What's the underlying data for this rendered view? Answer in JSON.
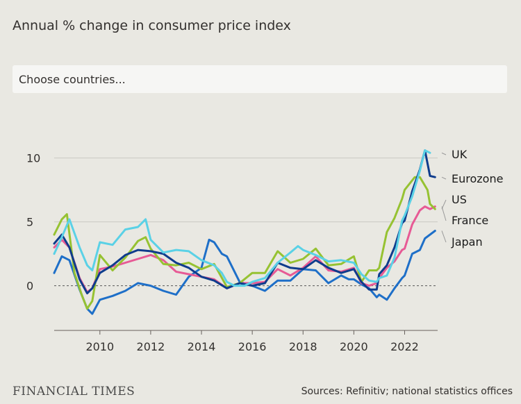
{
  "subtitle": "Annual % change in consumer price index",
  "chooser": {
    "placeholder": "Choose countries..."
  },
  "footer": {
    "brand": "FINANCIAL TIMES",
    "source": "Sources: Refinitiv; national statistics offices"
  },
  "chart_data": {
    "type": "line",
    "title": "",
    "xlabel": "",
    "ylabel": "",
    "xlim": [
      2008.2,
      2023.3
    ],
    "ylim": [
      -3.5,
      11.5
    ],
    "x_ticks": [
      2010,
      2012,
      2014,
      2016,
      2018,
      2020,
      2022
    ],
    "x_tick_labels": [
      "2010",
      "2012",
      "2014",
      "2016",
      "2018",
      "2020",
      "2022"
    ],
    "y_ticks": [
      0,
      5,
      10
    ],
    "y_tick_labels": [
      "0",
      "5",
      "10"
    ],
    "grid": true,
    "legend": "end-of-line labels, right",
    "series": [
      {
        "name": "UK",
        "color": "#5ad1e6",
        "x": [
          2008.2,
          2008.5,
          2008.8,
          2009.2,
          2009.5,
          2009.7,
          2010.0,
          2010.5,
          2011.0,
          2011.5,
          2011.8,
          2012.0,
          2012.5,
          2013.0,
          2013.5,
          2014.0,
          2014.5,
          2014.8,
          2015.0,
          2015.3,
          2015.7,
          2016.0,
          2016.5,
          2017.0,
          2017.5,
          2017.8,
          2018.0,
          2018.5,
          2019.0,
          2019.5,
          2020.0,
          2020.3,
          2020.6,
          2020.9,
          2021.0,
          2021.3,
          2021.6,
          2021.9,
          2022.0,
          2022.3,
          2022.6,
          2022.8,
          2023.0
        ],
        "y": [
          2.5,
          3.8,
          5.2,
          3.0,
          1.6,
          1.2,
          3.4,
          3.2,
          4.4,
          4.6,
          5.2,
          3.6,
          2.6,
          2.8,
          2.7,
          2.0,
          1.6,
          1.0,
          0.3,
          0.0,
          0.0,
          0.3,
          0.6,
          1.8,
          2.6,
          3.1,
          2.8,
          2.4,
          1.9,
          2.0,
          1.8,
          0.9,
          0.4,
          0.3,
          0.6,
          0.8,
          2.2,
          5.1,
          5.5,
          7.0,
          9.0,
          10.6,
          10.4
        ]
      },
      {
        "name": "Eurozone",
        "color": "#0f3c8c",
        "x": [
          2008.2,
          2008.5,
          2008.8,
          2009.2,
          2009.5,
          2009.7,
          2010.0,
          2010.5,
          2011.0,
          2011.5,
          2012.0,
          2012.5,
          2013.0,
          2013.5,
          2014.0,
          2014.5,
          2015.0,
          2015.5,
          2016.0,
          2016.5,
          2017.0,
          2017.5,
          2018.0,
          2018.5,
          2019.0,
          2019.5,
          2020.0,
          2020.3,
          2020.6,
          2020.9,
          2021.0,
          2021.3,
          2021.6,
          2021.9,
          2022.0,
          2022.3,
          2022.6,
          2022.8,
          2023.0,
          2023.2
        ],
        "y": [
          3.3,
          4.0,
          3.0,
          0.5,
          -0.6,
          -0.2,
          1.0,
          1.6,
          2.4,
          2.8,
          2.7,
          2.5,
          1.8,
          1.4,
          0.7,
          0.4,
          -0.2,
          0.2,
          0.0,
          0.2,
          1.8,
          1.4,
          1.3,
          2.0,
          1.4,
          1.0,
          1.3,
          0.3,
          -0.3,
          -0.3,
          0.9,
          1.6,
          3.0,
          4.9,
          5.1,
          7.4,
          9.1,
          10.6,
          8.6,
          8.5
        ]
      },
      {
        "name": "US",
        "color": "#96c232",
        "x": [
          2008.2,
          2008.5,
          2008.7,
          2009.0,
          2009.3,
          2009.5,
          2009.7,
          2010.0,
          2010.5,
          2011.0,
          2011.5,
          2011.8,
          2012.0,
          2012.5,
          2013.0,
          2013.5,
          2014.0,
          2014.5,
          2015.0,
          2015.5,
          2016.0,
          2016.5,
          2017.0,
          2017.5,
          2018.0,
          2018.5,
          2019.0,
          2019.5,
          2020.0,
          2020.3,
          2020.6,
          2020.9,
          2021.0,
          2021.3,
          2021.6,
          2021.9,
          2022.0,
          2022.4,
          2022.6,
          2022.9,
          2023.0,
          2023.2
        ],
        "y": [
          4.0,
          5.2,
          5.6,
          1.0,
          -0.8,
          -1.8,
          -1.2,
          2.4,
          1.2,
          2.2,
          3.5,
          3.8,
          2.9,
          1.7,
          1.6,
          1.8,
          1.3,
          1.7,
          -0.1,
          0.2,
          1.0,
          1.0,
          2.7,
          1.8,
          2.1,
          2.9,
          1.6,
          1.7,
          2.3,
          0.3,
          1.2,
          1.2,
          1.4,
          4.2,
          5.3,
          6.8,
          7.5,
          8.5,
          8.5,
          7.5,
          6.4,
          6.0
        ]
      },
      {
        "name": "France",
        "color": "#e75a95",
        "x": [
          2008.2,
          2008.5,
          2008.8,
          2009.2,
          2009.5,
          2009.7,
          2010.0,
          2010.5,
          2011.0,
          2011.5,
          2012.0,
          2012.5,
          2013.0,
          2013.5,
          2014.0,
          2014.5,
          2015.0,
          2015.5,
          2016.0,
          2016.5,
          2017.0,
          2017.5,
          2018.0,
          2018.5,
          2019.0,
          2019.5,
          2020.0,
          2020.3,
          2020.6,
          2020.9,
          2021.0,
          2021.3,
          2021.6,
          2021.9,
          2022.0,
          2022.3,
          2022.6,
          2022.8,
          2023.0,
          2023.2
        ],
        "y": [
          3.0,
          3.6,
          3.0,
          0.6,
          -0.5,
          -0.2,
          1.3,
          1.5,
          1.8,
          2.1,
          2.4,
          2.0,
          1.1,
          0.9,
          0.7,
          0.5,
          -0.2,
          0.2,
          0.2,
          0.3,
          1.3,
          0.8,
          1.4,
          2.3,
          1.2,
          1.1,
          1.4,
          0.2,
          0.0,
          0.2,
          0.6,
          1.4,
          1.9,
          2.8,
          2.9,
          4.8,
          5.9,
          6.2,
          6.0,
          6.2
        ]
      },
      {
        "name": "Japan",
        "color": "#1e6fc8",
        "x": [
          2008.2,
          2008.5,
          2008.8,
          2009.2,
          2009.5,
          2009.7,
          2010.0,
          2010.5,
          2011.0,
          2011.5,
          2012.0,
          2012.5,
          2013.0,
          2013.5,
          2014.0,
          2014.3,
          2014.5,
          2014.8,
          2015.0,
          2015.5,
          2016.0,
          2016.5,
          2017.0,
          2017.5,
          2018.0,
          2018.5,
          2019.0,
          2019.5,
          2019.8,
          2020.0,
          2020.3,
          2020.6,
          2020.9,
          2021.0,
          2021.3,
          2021.6,
          2021.9,
          2022.0,
          2022.3,
          2022.6,
          2022.8,
          2023.0,
          2023.2
        ],
        "y": [
          1.0,
          2.3,
          2.0,
          -0.3,
          -1.8,
          -2.2,
          -1.1,
          -0.8,
          -0.4,
          0.2,
          0.0,
          -0.4,
          -0.7,
          0.7,
          1.4,
          3.6,
          3.4,
          2.5,
          2.3,
          0.3,
          0.0,
          -0.4,
          0.4,
          0.4,
          1.3,
          1.2,
          0.2,
          0.8,
          0.5,
          0.5,
          0.1,
          -0.2,
          -0.9,
          -0.7,
          -1.1,
          -0.2,
          0.6,
          0.8,
          2.5,
          2.8,
          3.7,
          4.0,
          4.3
        ]
      }
    ]
  }
}
